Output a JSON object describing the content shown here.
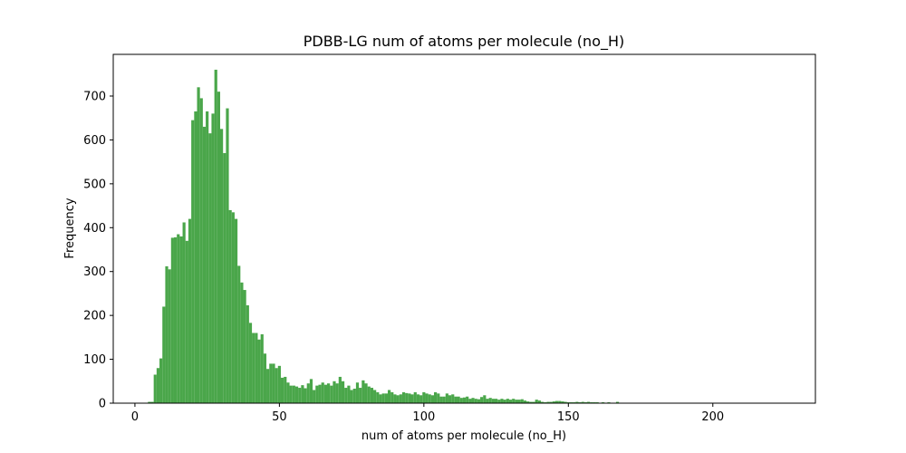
{
  "chart_data": {
    "type": "bar",
    "title": "PDBB-LG num of atoms per molecule (no_H)",
    "xlabel": "num of atoms per molecule (no_H)",
    "ylabel": "Frequency",
    "xlim": [
      -7.5,
      235.5
    ],
    "ylim": [
      0,
      795
    ],
    "xticks": [
      0,
      50,
      100,
      150,
      200
    ],
    "yticks": [
      0,
      100,
      200,
      300,
      400,
      500,
      600,
      700
    ],
    "bar_color": "#4aa64a",
    "grid": false,
    "legend": "none",
    "bin_start": 3.5,
    "bin_width": 1,
    "values": [
      1,
      3,
      3,
      65,
      80,
      102,
      220,
      312,
      305,
      377,
      378,
      385,
      380,
      412,
      370,
      420,
      645,
      665,
      720,
      695,
      630,
      665,
      615,
      660,
      760,
      710,
      625,
      570,
      672,
      440,
      435,
      420,
      313,
      275,
      258,
      223,
      183,
      160,
      160,
      145,
      157,
      113,
      78,
      90,
      90,
      80,
      85,
      58,
      60,
      47,
      40,
      40,
      38,
      35,
      41,
      34,
      45,
      55,
      30,
      40,
      42,
      47,
      42,
      45,
      40,
      50,
      45,
      60,
      50,
      35,
      40,
      30,
      33,
      47,
      35,
      52,
      45,
      38,
      35,
      30,
      25,
      20,
      22,
      22,
      30,
      25,
      20,
      18,
      20,
      25,
      23,
      22,
      20,
      25,
      20,
      18,
      25,
      22,
      20,
      18,
      25,
      22,
      15,
      15,
      22,
      18,
      20,
      15,
      15,
      12,
      13,
      15,
      10,
      12,
      10,
      9,
      14,
      18,
      10,
      12,
      10,
      10,
      8,
      10,
      8,
      10,
      8,
      10,
      8,
      8,
      9,
      6,
      4,
      3,
      3,
      8,
      6,
      3,
      2,
      3,
      3,
      4,
      5,
      5,
      4,
      3,
      2,
      2,
      2,
      3,
      2,
      3,
      2,
      3,
      2,
      2,
      2,
      1,
      2,
      1,
      2,
      1,
      1,
      3,
      1,
      1,
      1,
      1,
      1,
      1,
      1,
      1,
      1,
      1,
      1,
      1,
      1,
      1,
      1,
      1,
      1,
      1,
      1,
      1,
      1,
      1,
      1,
      1,
      1,
      1,
      1,
      1,
      1,
      1,
      1,
      1,
      1,
      1,
      1,
      1,
      1,
      1,
      1,
      1,
      1,
      1,
      1,
      1,
      1,
      1,
      1,
      1,
      1,
      1,
      1,
      1,
      1,
      1,
      1,
      1,
      1,
      1,
      1,
      1,
      1,
      1,
      1,
      1,
      1,
      1,
      1,
      1
    ]
  }
}
